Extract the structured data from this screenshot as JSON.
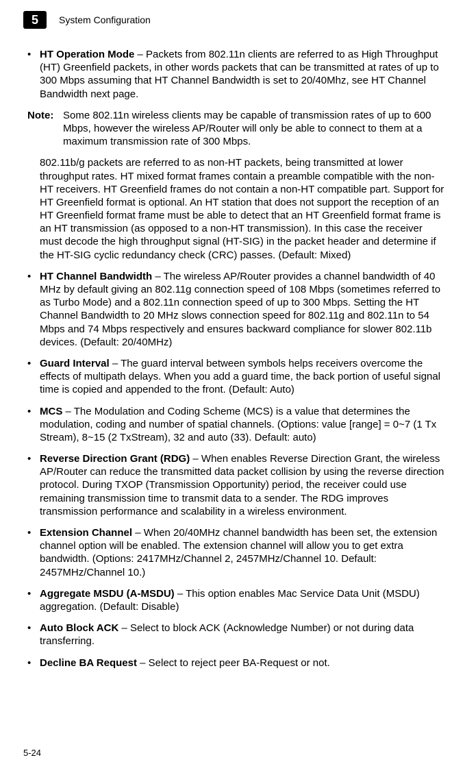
{
  "header": {
    "chapter_number": "5",
    "chapter_title": "System Configuration"
  },
  "items": [
    {
      "lead": "HT Operation Mode",
      "text": " – Packets from 802.11n clients are referred to as High Throughput (HT) Greenfield packets, in other words packets that can be transmitted at rates of up to 300 Mbps assuming that HT Channel Bandwidth is set to 20/40Mhz, see HT Channel Bandwidth next page."
    }
  ],
  "note": {
    "label": "Note:",
    "text": "Some 802.11n wireless clients may be capable of transmission rates of up to 600 Mbps, however the wireless AP/Router will only be able to connect to them at a maximum transmission rate of 300 Mbps."
  },
  "continuation": "802.11b/g packets are referred to as non-HT packets, being transmitted at lower throughput rates. HT mixed format frames contain a preamble compatible with the non-HT receivers. HT Greenfield frames do not contain a non-HT compatible part. Support for HT Greenfield format is optional. An HT station that does not support the reception of an HT Greenfield format frame must be able to detect that an HT Greenfield format frame is an HT transmission (as opposed to a non-HT transmission). In this case the receiver must decode the high throughput signal (HT-SIG) in the packet header and determine if the HT-SIG cyclic redundancy check (CRC) passes. (Default: Mixed)",
  "rest": [
    {
      "lead": "HT Channel Bandwidth",
      "text": " – The wireless AP/Router provides a channel bandwidth of 40 MHz by default giving an 802.11g connection speed of 108 Mbps (sometimes referred to as Turbo Mode) and a 802.11n connection speed of up to 300 Mbps. Setting the HT Channel Bandwidth to 20 MHz slows connection speed for 802.11g and 802.11n to 54 Mbps and 74 Mbps respectively and ensures backward compliance for slower 802.11b devices. (Default: 20/40MHz)"
    },
    {
      "lead": "Guard Interval",
      "text": " – The guard interval between symbols helps receivers overcome the effects of multipath delays. When you add a guard time, the back portion of useful signal time is copied and appended to the front. (Default: Auto)"
    },
    {
      "lead": "MCS",
      "text": " – The Modulation and Coding Scheme (MCS) is a value that determines the modulation, coding and number of spatial channels. (Options: value [range] = 0~7 (1 Tx Stream), 8~15 (2 TxStream), 32 and auto (33). Default: auto)"
    },
    {
      "lead": "Reverse Direction Grant (RDG)",
      "text": " – When enables Reverse Direction Grant, the wireless AP/Router can reduce the transmitted data packet collision by using the reverse direction protocol. During TXOP (Transmission Opportunity) period, the receiver could use remaining transmission time to transmit data to a sender. The RDG improves transmission performance and scalability in a wireless environment."
    },
    {
      "lead": "Extension Channel",
      "text": " – When 20/40MHz channel bandwidth has been set, the extension channel option will be enabled. The extension channel will allow you to get extra bandwidth. (Options: 2417MHz/Channel 2, 2457MHz/Channel 10. Default: 2457MHz/Channel 10.)"
    },
    {
      "lead": "Aggregate MSDU (A-MSDU)",
      "text": " – This option enables Mac Service Data Unit (MSDU) aggregation. (Default: Disable)"
    },
    {
      "lead": "Auto Block ACK",
      "text": " – Select to block ACK (Acknowledge Number) or not during data transferring."
    },
    {
      "lead": "Decline BA Request",
      "text": " – Select to reject peer BA-Request or not."
    }
  ],
  "footer": "5-24",
  "bullet_char": "•"
}
